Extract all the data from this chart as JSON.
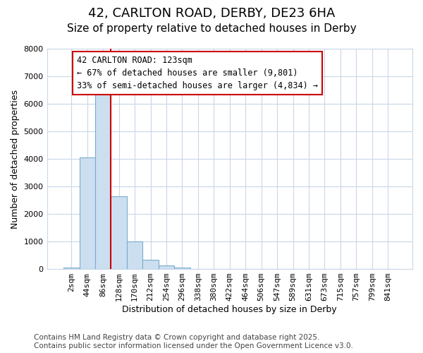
{
  "title1": "42, CARLTON ROAD, DERBY, DE23 6HA",
  "title2": "Size of property relative to detached houses in Derby",
  "xlabel": "Distribution of detached houses by size in Derby",
  "ylabel": "Number of detached properties",
  "categories": [
    "2sqm",
    "44sqm",
    "86sqm",
    "128sqm",
    "170sqm",
    "212sqm",
    "254sqm",
    "296sqm",
    "338sqm",
    "380sqm",
    "422sqm",
    "464sqm",
    "506sqm",
    "547sqm",
    "589sqm",
    "631sqm",
    "673sqm",
    "715sqm",
    "757sqm",
    "799sqm",
    "841sqm"
  ],
  "values": [
    50,
    4050,
    6650,
    2650,
    1000,
    325,
    125,
    50,
    0,
    0,
    0,
    0,
    0,
    0,
    0,
    0,
    0,
    0,
    0,
    0,
    0
  ],
  "bar_color": "#ccdff0",
  "bar_edge_color": "#7aaccc",
  "vline_color": "#cc0000",
  "annotation_title": "42 CARLTON ROAD: 123sqm",
  "annotation_line1": "← 67% of detached houses are smaller (9,801)",
  "annotation_line2": "33% of semi-detached houses are larger (4,834) →",
  "annotation_box_color": "#cc0000",
  "ylim": [
    0,
    8000
  ],
  "yticks": [
    0,
    1000,
    2000,
    3000,
    4000,
    5000,
    6000,
    7000,
    8000
  ],
  "bg_color": "#ffffff",
  "grid_color": "#c8d8e8",
  "footer1": "Contains HM Land Registry data © Crown copyright and database right 2025.",
  "footer2": "Contains public sector information licensed under the Open Government Licence v3.0.",
  "footer_fontsize": 7.5,
  "title1_fontsize": 13,
  "title2_fontsize": 11,
  "axis_fontsize": 9,
  "tick_fontsize": 8
}
